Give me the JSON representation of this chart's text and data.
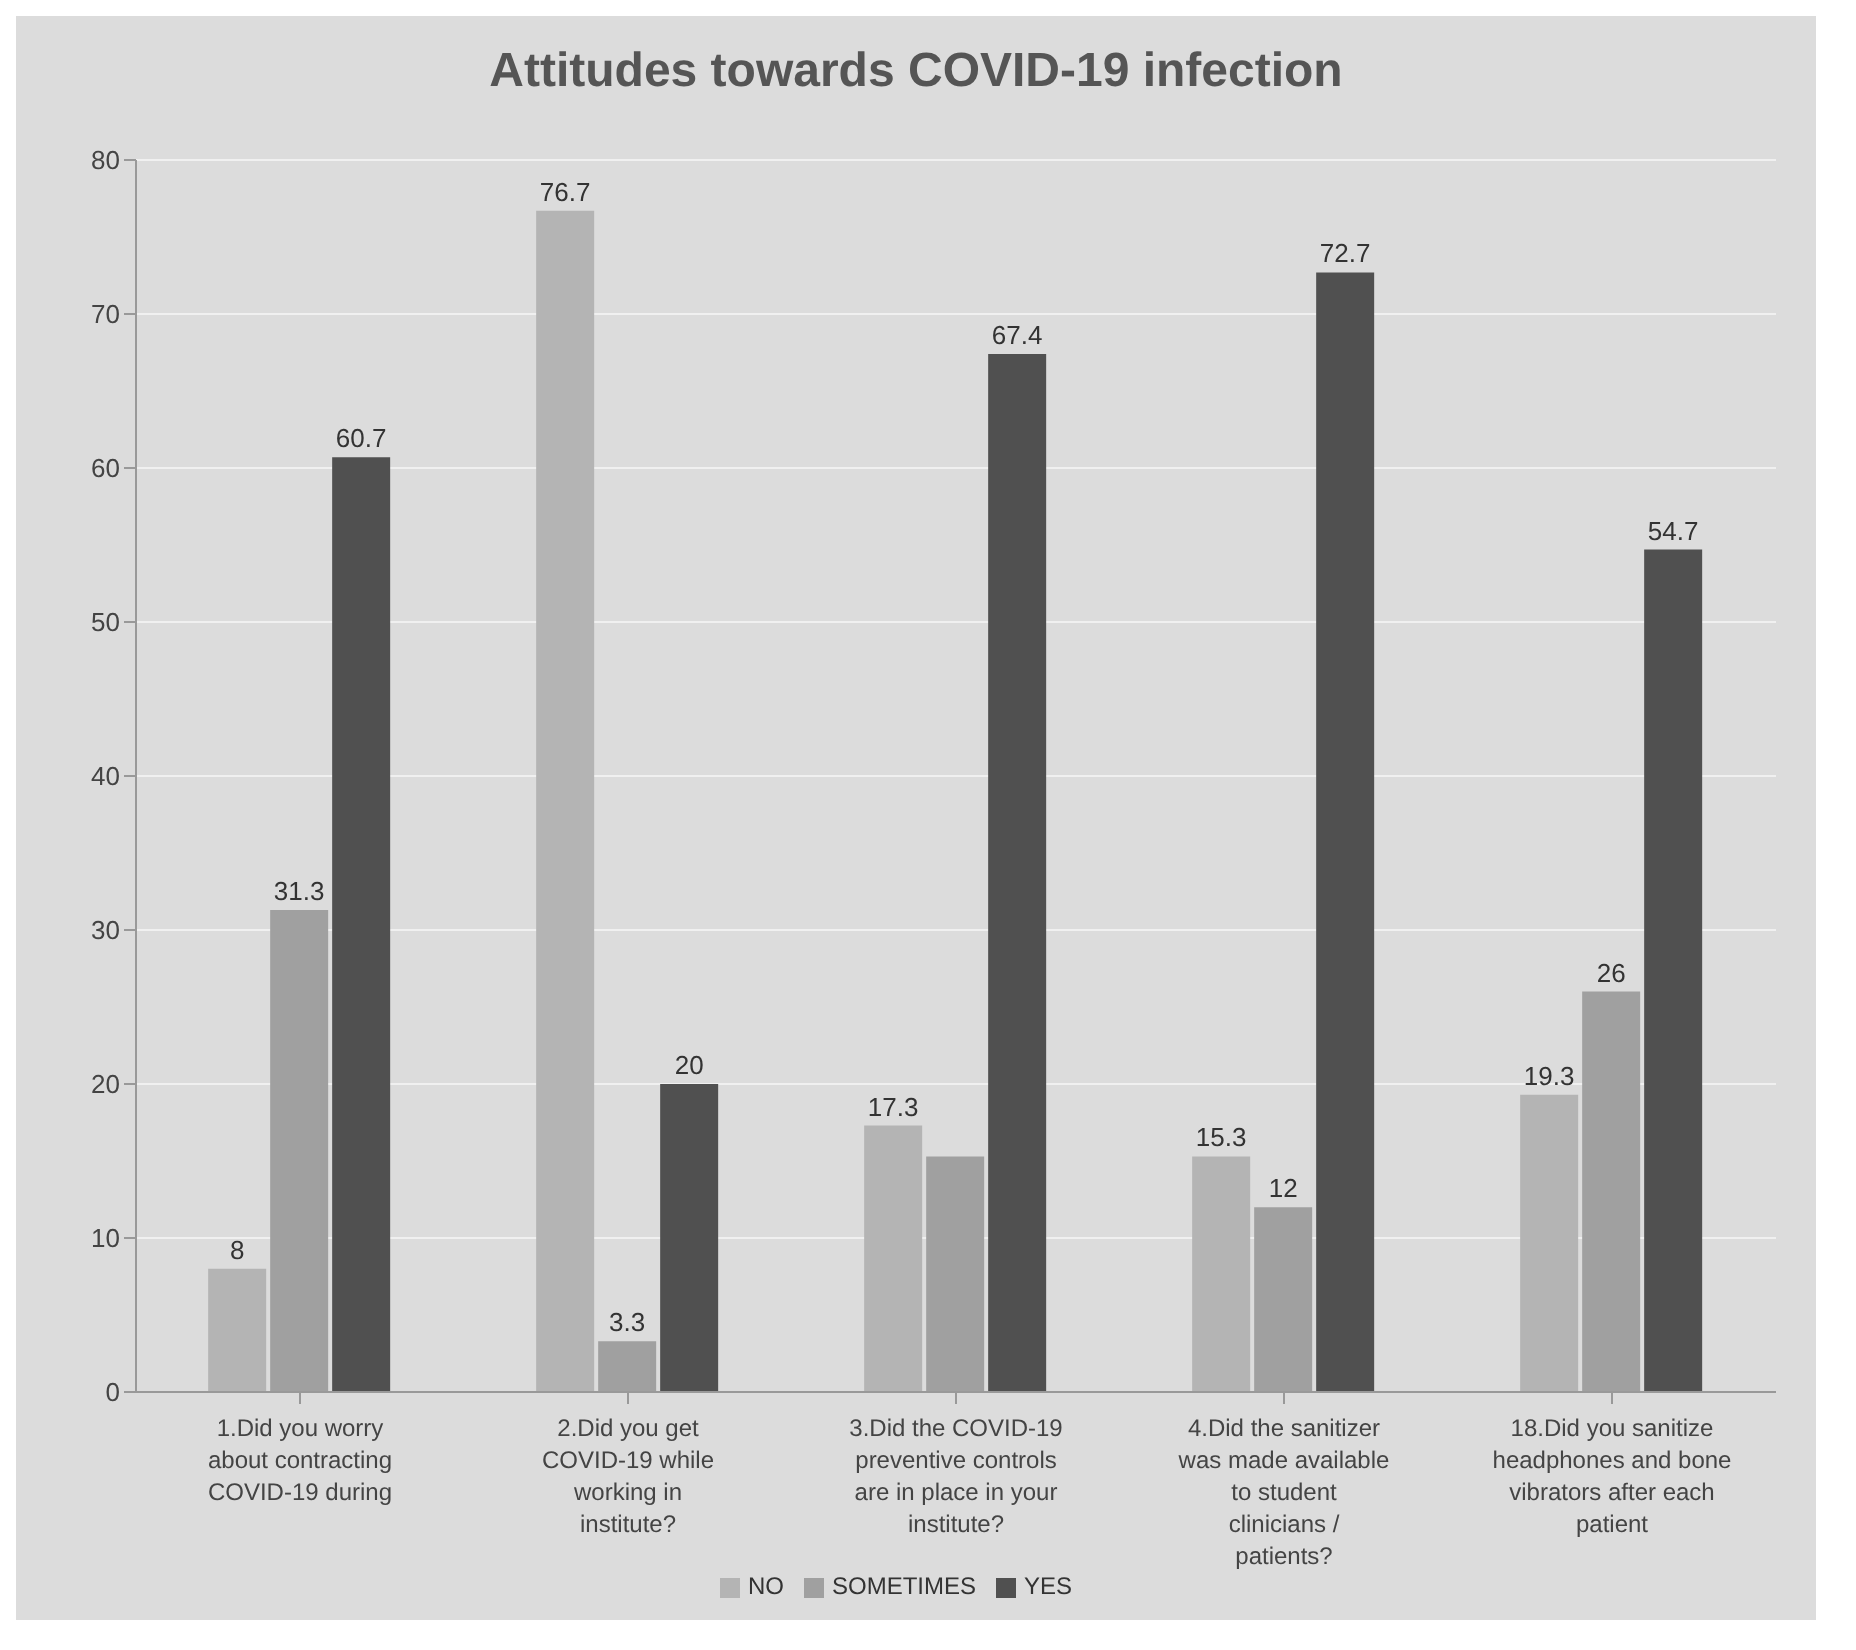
{
  "chart_data": {
    "type": "bar",
    "title": "Attitudes towards COVID-19 infection",
    "categories": [
      "1.Did you worry about contracting COVID-19 during",
      "2.Did you get COVID-19 while working in institute?",
      "3.Did the COVID-19 preventive controls are in place in your institute?",
      "4.Did the sanitizer was made available to student clinicians / patients?",
      "18.Did you sanitize headphones and bone vibrators after each patient"
    ],
    "series": [
      {
        "name": "NO",
        "color": "#b4b4b4",
        "values": [
          8,
          76.7,
          17.3,
          15.3,
          19.3
        ],
        "value_labels": [
          "8",
          "76.7",
          "17.3",
          "15.3",
          "19.3"
        ]
      },
      {
        "name": "SOMETIMES",
        "color": "#a0a0a0",
        "values": [
          31.3,
          3.3,
          15.3,
          12,
          26
        ],
        "value_labels": [
          "31.3",
          "3.3",
          null,
          "12",
          "26"
        ]
      },
      {
        "name": "YES",
        "color": "#505050",
        "values": [
          60.7,
          20,
          67.4,
          72.7,
          54.7
        ],
        "value_labels": [
          "60.7",
          "20",
          "67.4",
          "72.7",
          "54.7"
        ]
      }
    ],
    "ylim": [
      0,
      80
    ],
    "yticks": [
      0,
      10,
      20,
      30,
      40,
      50,
      60,
      70,
      80
    ],
    "grid": "y",
    "legend": "bottom"
  }
}
